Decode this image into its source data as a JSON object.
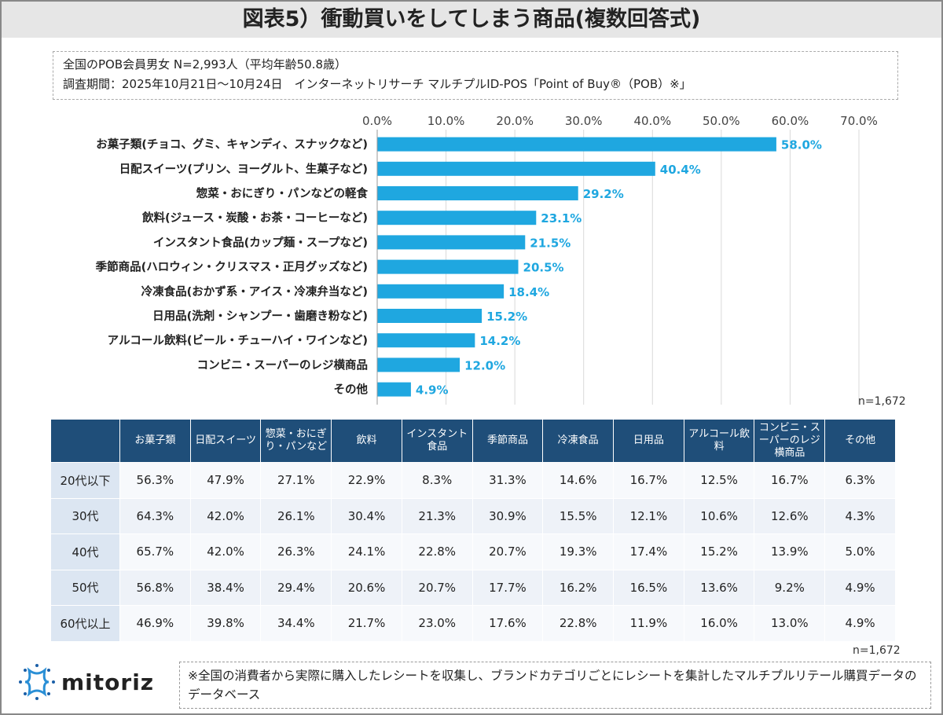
{
  "title": "図表5）衝動買いをしてしまう商品(複数回答式)",
  "info": {
    "line1": "全国のPOB会員男女 N=2,993人（平均年齢50.8歳）",
    "line2": "調査期間：2025年10月21日～10月24日　インターネットリサーチ マルチプルID-POS「Point of Buy®（POB）※」"
  },
  "chart_data": {
    "type": "bar",
    "orientation": "horizontal",
    "categories": [
      "お菓子類(チョコ、グミ、キャンディ、スナックなど)",
      "日配スイーツ(プリン、ヨーグルト、生菓子など)",
      "惣菜・おにぎり・パンなどの軽食",
      "飲料(ジュース・炭酸・お茶・コーヒーなど)",
      "インスタント食品(カップ麺・スープなど)",
      "季節商品(ハロウィン・クリスマス・正月グッズなど)",
      "冷凍食品(おかず系・アイス・冷凍弁当など)",
      "日用品(洗剤・シャンプー・歯磨き粉など)",
      "アルコール飲料(ビール・チューハイ・ワインなど)",
      "コンビニ・スーパーのレジ横商品",
      "その他"
    ],
    "values": [
      58.0,
      40.4,
      29.2,
      23.1,
      21.5,
      20.5,
      18.4,
      15.2,
      14.2,
      12.0,
      4.9
    ],
    "data_labels": [
      "58.0%",
      "40.4%",
      "29.2%",
      "23.1%",
      "21.5%",
      "20.5%",
      "18.4%",
      "15.2%",
      "14.2%",
      "12.0%",
      "4.9%"
    ],
    "xlim": [
      0,
      70
    ],
    "ticks": [
      "0.0%",
      "10.0%",
      "20.0%",
      "30.0%",
      "40.0%",
      "50.0%",
      "60.0%",
      "70.0%"
    ],
    "grid": true,
    "axis_position": "top",
    "color": "#1fa7e0",
    "label_color": "#1fa7e0",
    "note": "n=1,672"
  },
  "table": {
    "headers": [
      "",
      "お菓子類",
      "日配スイーツ",
      "惣菜・おにぎり・パンなど",
      "飲料",
      "インスタント食品",
      "季節商品",
      "冷凍食品",
      "日用品",
      "アルコール飲料",
      "コンビニ・スーパーのレジ横商品",
      "その他"
    ],
    "rows": [
      [
        "20代以下",
        "56.3%",
        "47.9%",
        "27.1%",
        "22.9%",
        "8.3%",
        "31.3%",
        "14.6%",
        "16.7%",
        "12.5%",
        "16.7%",
        "6.3%"
      ],
      [
        "30代",
        "64.3%",
        "42.0%",
        "26.1%",
        "30.4%",
        "21.3%",
        "30.9%",
        "15.5%",
        "12.1%",
        "10.6%",
        "12.6%",
        "4.3%"
      ],
      [
        "40代",
        "65.7%",
        "42.0%",
        "26.3%",
        "24.1%",
        "22.8%",
        "20.7%",
        "19.3%",
        "17.4%",
        "15.2%",
        "13.9%",
        "5.0%"
      ],
      [
        "50代",
        "56.8%",
        "38.4%",
        "29.4%",
        "20.6%",
        "20.7%",
        "17.7%",
        "16.2%",
        "16.5%",
        "13.6%",
        "9.2%",
        "4.9%"
      ],
      [
        "60代以上",
        "46.9%",
        "39.8%",
        "34.4%",
        "21.7%",
        "23.0%",
        "17.6%",
        "22.8%",
        "11.9%",
        "16.0%",
        "13.0%",
        "4.9%"
      ]
    ],
    "note": "n=1,672"
  },
  "footer": {
    "logo": "mitoriz",
    "note": "※全国の消費者から実際に購入したレシートを収集し、ブランドカテゴリごとにレシートを集計したマルチプルリテール購買データのデータベース"
  }
}
